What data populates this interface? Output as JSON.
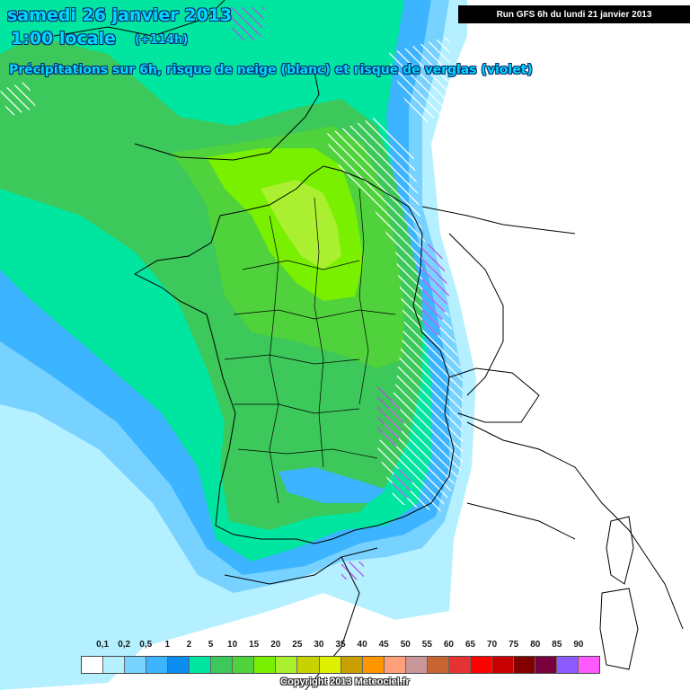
{
  "header": {
    "date": "samedi 26 janvier 2013",
    "time": "1:00 locale",
    "lead": "(+114h)",
    "subtitle": "Précipitations sur 6h, risque de neige (blanc) et risque de verglas (violet)",
    "run": "Run GFS 6h du lundi 21 janvier 2013"
  },
  "legend": {
    "labels": [
      "0,1",
      "0,2",
      "0,5",
      "1",
      "2",
      "5",
      "10",
      "15",
      "20",
      "25",
      "30",
      "35",
      "40",
      "45",
      "50",
      "55",
      "60",
      "65",
      "70",
      "75",
      "80",
      "85",
      "90"
    ],
    "colors": [
      "#ffffff",
      "#b4f0ff",
      "#78d2ff",
      "#3cb4ff",
      "#0a8cf0",
      "#00e6a0",
      "#3cc85a",
      "#50d23c",
      "#78f000",
      "#aaf030",
      "#c8d200",
      "#dcf000",
      "#c8a000",
      "#ff9600",
      "#ffa07a",
      "#c89696",
      "#c86432",
      "#e63232",
      "#ff0000",
      "#c80000",
      "#820000",
      "#78003c",
      "#8c5aff",
      "#ff5aff"
    ]
  },
  "copyright": "Copyright 2013 Meteociel.fr"
}
